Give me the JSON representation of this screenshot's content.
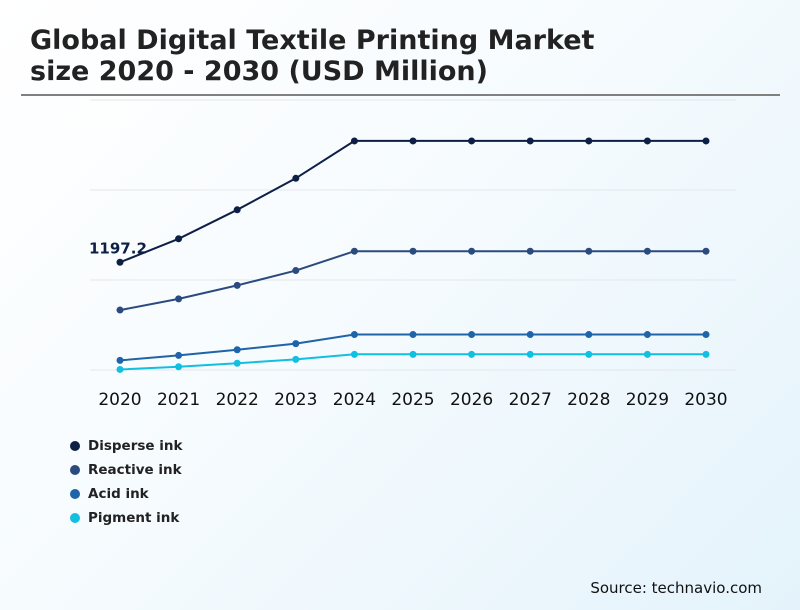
{
  "title_lines": [
    "Global Digital Textile Printing Market",
    "size 2020 - 2030 (USD Million)"
  ],
  "source": "Source: technavio.com",
  "chart_data": {
    "type": "line",
    "title": "Global Digital Textile Printing Market size 2020 - 2030 (USD Million)",
    "xlabel": "",
    "ylabel": "",
    "x": [
      "2020",
      "2021",
      "2022",
      "2023",
      "2024",
      "2025",
      "2026",
      "2027",
      "2028",
      "2029",
      "2030"
    ],
    "ylim": [
      0,
      3000
    ],
    "grid": true,
    "legend": "bottom-left",
    "annotations": [
      {
        "series": "Disperse ink",
        "x": "2020",
        "text": "1197.2"
      }
    ],
    "series": [
      {
        "name": "Disperse ink",
        "color": "#0d1f45",
        "values": [
          1197.2,
          1458,
          1780,
          2130,
          2545,
          2545,
          2545,
          2545,
          2545,
          2545,
          2545
        ]
      },
      {
        "name": "Reactive ink",
        "color": "#2b4a7e",
        "values": [
          666,
          790,
          940,
          1105,
          1320,
          1320,
          1320,
          1320,
          1320,
          1320,
          1320
        ]
      },
      {
        "name": "Acid ink",
        "color": "#1f63a8",
        "values": [
          107,
          162,
          225,
          293,
          394,
          394,
          394,
          394,
          394,
          394,
          394
        ]
      },
      {
        "name": "Pigment ink",
        "color": "#12bfe0",
        "values": [
          6,
          36,
          75,
          118,
          174,
          174,
          174,
          174,
          174,
          174,
          174
        ]
      }
    ]
  }
}
